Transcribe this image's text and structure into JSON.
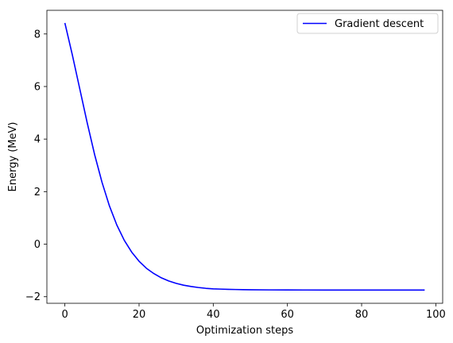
{
  "chart_data": {
    "type": "line",
    "xlabel": "Optimization steps",
    "ylabel": "Energy (MeV)",
    "xlim": [
      -4.85,
      101.85
    ],
    "ylim": [
      -2.25,
      8.9
    ],
    "xticks": [
      0,
      20,
      40,
      60,
      80,
      100
    ],
    "yticks": [
      -2,
      0,
      2,
      4,
      6,
      8
    ],
    "grid": false,
    "legend_position": "top-right",
    "series": [
      {
        "name": "Gradient descent",
        "color": "#0000ff",
        "x": [
          0,
          2,
          4,
          6,
          8,
          10,
          12,
          14,
          16,
          18,
          20,
          22,
          24,
          26,
          28,
          30,
          32,
          34,
          36,
          38,
          40,
          42,
          44,
          46,
          48,
          50,
          55,
          60,
          65,
          70,
          75,
          80,
          85,
          90,
          95,
          97
        ],
        "y": [
          8.42,
          7.21,
          5.92,
          4.63,
          3.42,
          2.36,
          1.46,
          0.73,
          0.15,
          -0.3,
          -0.65,
          -0.92,
          -1.12,
          -1.28,
          -1.4,
          -1.49,
          -1.56,
          -1.61,
          -1.65,
          -1.68,
          -1.7,
          -1.71,
          -1.72,
          -1.725,
          -1.73,
          -1.735,
          -1.74,
          -1.742,
          -1.744,
          -1.745,
          -1.745,
          -1.746,
          -1.746,
          -1.746,
          -1.746,
          -1.746
        ]
      }
    ]
  }
}
